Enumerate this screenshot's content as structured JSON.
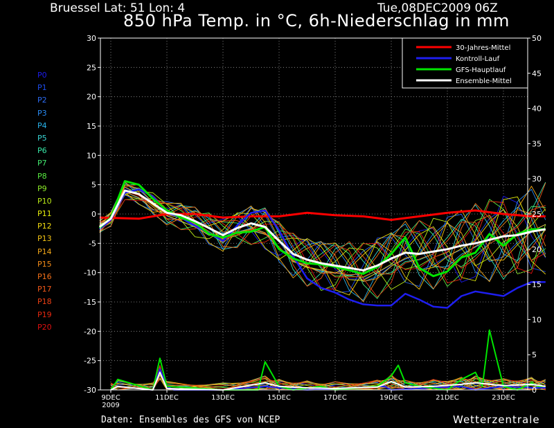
{
  "header": {
    "location": "Bruessel  Lat: 51 Lon: 4",
    "date": "Tue,08DEC2009 06Z",
    "title": "850 hPa Temp. in °C, 6h-Niederschlag in mm"
  },
  "footer": {
    "source": "Daten: Ensembles des GFS von NCEP",
    "brand": "Wetterzentrale"
  },
  "chart_data": {
    "type": "line",
    "title": "850 hPa Temp. in °C, 6h-Niederschlag in mm",
    "x_unit": "days after 09DEC 00Z",
    "x_range": [
      -0.4,
      15.5
    ],
    "x_ticks": [
      {
        "x": 0,
        "label": "9DEC",
        "sub": "2009"
      },
      {
        "x": 2,
        "label": "11DEC"
      },
      {
        "x": 4,
        "label": "13DEC"
      },
      {
        "x": 6,
        "label": "15DEC"
      },
      {
        "x": 8,
        "label": "17DEC"
      },
      {
        "x": 10,
        "label": "19DEC"
      },
      {
        "x": 12,
        "label": "21DEC"
      },
      {
        "x": 14,
        "label": "23DEC"
      }
    ],
    "y_left": {
      "range": [
        -30,
        30
      ],
      "ticks": [
        30,
        25,
        20,
        15,
        10,
        5,
        0,
        -5,
        -10,
        -15,
        -20,
        -25,
        -30
      ]
    },
    "y_right": {
      "range": [
        0,
        50
      ],
      "ticks": [
        50,
        45,
        40,
        35,
        30,
        25,
        20,
        15,
        10,
        5,
        0
      ]
    },
    "grid": true,
    "legend_position": "top-right",
    "series": [
      {
        "name": "30-Jahres-Mittel",
        "color": "#ff0000",
        "width": 3,
        "x": [
          -0.4,
          1,
          2,
          3,
          4,
          5,
          6,
          7,
          8,
          9,
          10,
          11,
          12,
          13,
          14,
          15,
          15.5
        ],
        "y": [
          -0.6,
          -0.8,
          0,
          0,
          -0.6,
          -0.4,
          -0.4,
          0.2,
          -0.2,
          -0.4,
          -1.0,
          -0.4,
          0.2,
          0.6,
          0,
          -0.4,
          -0.4
        ]
      },
      {
        "name": "Kontroll-Lauf",
        "color": "#1e1ef0",
        "width": 2.5,
        "x": [
          -0.4,
          0,
          0.5,
          1,
          1.5,
          2,
          2.5,
          3,
          3.5,
          4,
          4.5,
          5,
          5.5,
          6,
          6.5,
          7,
          7.5,
          8,
          8.5,
          9,
          9.5,
          10,
          10.5,
          11,
          11.5,
          12,
          12.5,
          13,
          13.5,
          14,
          14.5,
          15,
          15.5
        ],
        "y": [
          -2.6,
          -1.0,
          3.6,
          4.2,
          3.0,
          0.2,
          -0.6,
          -2.0,
          -3.2,
          -4.6,
          -2.0,
          0.2,
          0.6,
          -2.8,
          -7.2,
          -11.0,
          -12.6,
          -13.4,
          -14.6,
          -15.4,
          -15.6,
          -15.6,
          -13.6,
          -14.6,
          -15.8,
          -16.0,
          -14.0,
          -13.2,
          -13.6,
          -14.0,
          -12.6,
          -11.6,
          -11.6
        ]
      },
      {
        "name": "GFS-Hauptlauf",
        "color": "#00e600",
        "width": 3,
        "x": [
          -0.4,
          0,
          0.5,
          1,
          1.5,
          2,
          2.5,
          3,
          3.5,
          4,
          4.5,
          5,
          5.5,
          6,
          6.5,
          7,
          7.5,
          8,
          8.5,
          9,
          9.5,
          10,
          10.5,
          11,
          11.5,
          12,
          12.5,
          13,
          13.5,
          14,
          14.5,
          15,
          15.5
        ],
        "y": [
          -2.4,
          -0.6,
          5.6,
          5.0,
          2.6,
          0.6,
          -0.6,
          -1.4,
          -3.4,
          -4.0,
          -3.2,
          -3.0,
          -2.2,
          -6.0,
          -7.6,
          -8.4,
          -8.6,
          -9.0,
          -9.6,
          -10.2,
          -9.0,
          -6.8,
          -4.0,
          -9.2,
          -10.6,
          -9.8,
          -7.4,
          -6.6,
          -3.4,
          -5.4,
          -3.4,
          -2.6,
          -2.6
        ]
      },
      {
        "name": "Ensemble-Mittel",
        "color": "#ffffff",
        "width": 3,
        "x": [
          -0.4,
          0,
          0.5,
          1,
          1.5,
          2,
          2.5,
          3,
          3.5,
          4,
          4.5,
          5,
          5.5,
          6,
          6.5,
          7,
          7.5,
          8,
          8.5,
          9,
          9.5,
          10,
          10.5,
          11,
          11.5,
          12,
          12.5,
          13,
          13.5,
          14,
          14.5,
          15,
          15.5
        ],
        "y": [
          -2.2,
          -0.8,
          4.0,
          3.4,
          1.8,
          0.2,
          -0.2,
          -1.2,
          -2.4,
          -3.6,
          -2.4,
          -1.6,
          -2.2,
          -4.6,
          -6.8,
          -7.8,
          -8.4,
          -8.8,
          -9.2,
          -9.6,
          -8.8,
          -7.6,
          -6.6,
          -6.8,
          -6.4,
          -6.0,
          -5.4,
          -5.0,
          -4.4,
          -3.8,
          -3.6,
          -3.0,
          -2.6
        ]
      }
    ],
    "precip_series": [
      {
        "name": "Kontroll-Lauf",
        "color": "#1e1ef0",
        "x": [
          0,
          0.25,
          1.5,
          1.75,
          2.0,
          2.25,
          4.0,
          5.5,
          6.0,
          7.0,
          9.75,
          10.0,
          12.5,
          13.0,
          14.0,
          15.0,
          15.5
        ],
        "y": [
          0.0,
          0.5,
          0.0,
          3.0,
          0.5,
          0.0,
          0.0,
          0.5,
          0.3,
          0.0,
          0.5,
          0.0,
          0.5,
          0.0,
          0.5,
          0.3,
          0.3
        ]
      },
      {
        "name": "GFS-Hauptlauf",
        "color": "#00e600",
        "x": [
          0,
          0.25,
          1.5,
          1.75,
          2.0,
          4.0,
          5.25,
          5.5,
          6.0,
          6.5,
          7.5,
          8.0,
          9.5,
          10.0,
          10.25,
          10.5,
          11.0,
          12.0,
          12.5,
          13.0,
          13.25,
          13.5,
          14.0,
          14.5,
          15.0,
          15.25,
          15.5
        ],
        "y": [
          0.0,
          1.5,
          0.0,
          4.5,
          0.5,
          0.0,
          0.0,
          4.0,
          0.5,
          0.0,
          0.5,
          0.0,
          0.5,
          2.0,
          3.5,
          1.0,
          0.5,
          0.0,
          1.5,
          2.5,
          0.5,
          8.5,
          0.5,
          0.0,
          1.0,
          0.5,
          0.5
        ]
      },
      {
        "name": "Ensemble-Mittel",
        "color": "#ffffff",
        "x": [
          0,
          0.25,
          1.5,
          1.75,
          2.0,
          4.0,
          5.5,
          6.0,
          7.0,
          8.0,
          9.5,
          10.0,
          10.5,
          11.5,
          12.5,
          13.0,
          14.0,
          15.0,
          15.5
        ],
        "y": [
          0.0,
          0.5,
          0.0,
          2.5,
          0.2,
          0.0,
          1.0,
          0.5,
          0.3,
          0.2,
          0.4,
          1.2,
          0.4,
          0.5,
          0.8,
          1.0,
          0.6,
          0.8,
          0.5
        ]
      }
    ],
    "ensemble_members": [
      "P0",
      "P1",
      "P2",
      "P3",
      "P4",
      "P5",
      "P6",
      "P7",
      "P8",
      "P9",
      "P10",
      "P11",
      "P12",
      "P13",
      "P14",
      "P15",
      "P16",
      "P17",
      "P18",
      "P19",
      "P20"
    ],
    "member_colors": [
      "#1c1cee",
      "#1e4ef0",
      "#2c6cf4",
      "#2a8cf4",
      "#28b4ec",
      "#38d4d4",
      "#38e8a8",
      "#44ec70",
      "#58ec40",
      "#8cec28",
      "#bcec18",
      "#e8f00c",
      "#f4dc10",
      "#f4c414",
      "#f4a818",
      "#f48c18",
      "#f47018",
      "#f45818",
      "#f04014",
      "#e82810",
      "#e01010"
    ]
  }
}
